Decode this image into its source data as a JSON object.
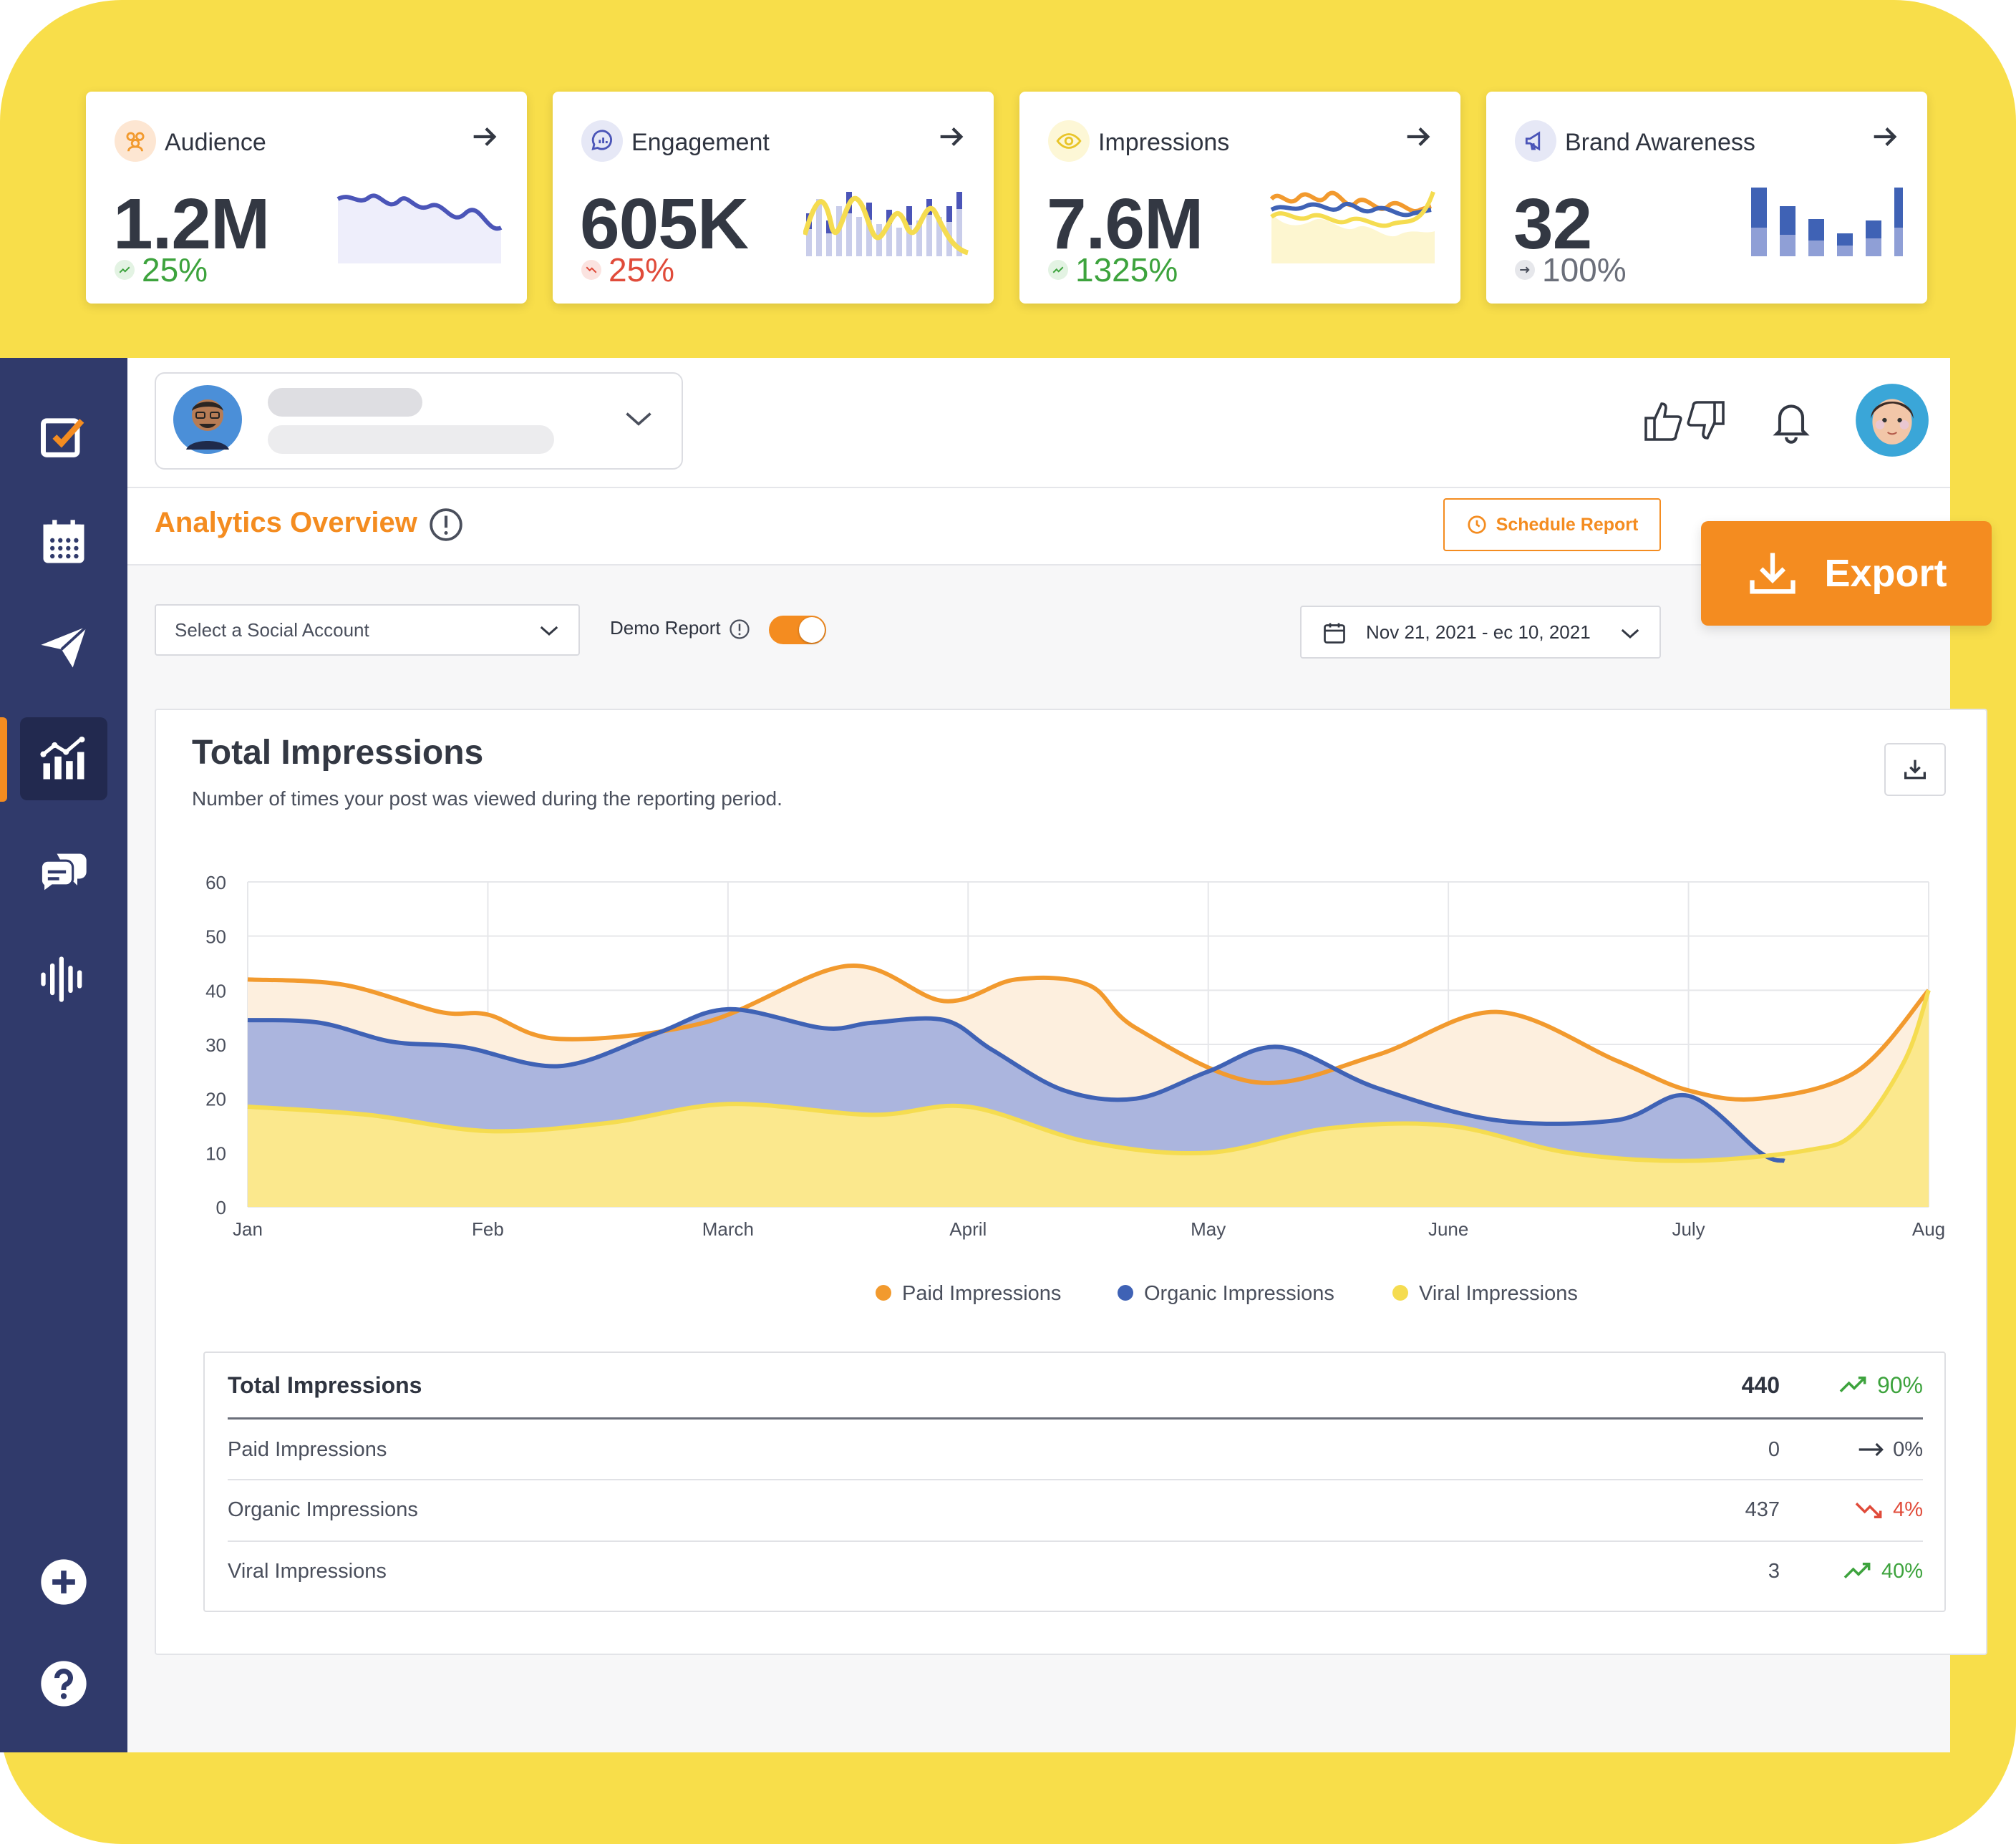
{
  "kpis": [
    {
      "title": "Audience",
      "value": "1.2M",
      "change": "25%",
      "trend": "up",
      "change_color": "#3da33d"
    },
    {
      "title": "Engagement",
      "value": "605K",
      "change": "25%",
      "trend": "down",
      "change_color": "#e04b3a"
    },
    {
      "title": "Impressions",
      "value": "7.6M",
      "change": "1325%",
      "trend": "up",
      "change_color": "#3da33d"
    },
    {
      "title": "Brand Awareness",
      "value": "32",
      "change": "100%",
      "trend": "flat",
      "change_color": "#6b6f7a"
    }
  ],
  "sidebar": {
    "items": [
      {
        "icon": "task-checkbox-icon",
        "active": false
      },
      {
        "icon": "calendar-icon",
        "active": false
      },
      {
        "icon": "paper-plane-icon",
        "active": false
      },
      {
        "icon": "analytics-icon",
        "active": true
      },
      {
        "icon": "chat-bubbles-icon",
        "active": false
      },
      {
        "icon": "sound-wave-icon",
        "active": false
      }
    ],
    "bottom": [
      {
        "icon": "plus-circle-icon"
      },
      {
        "icon": "help-circle-icon"
      }
    ]
  },
  "header": {
    "page_title": "Analytics Overview",
    "schedule_label": "Schedule Report",
    "export_label": "Export"
  },
  "filters": {
    "social_account_placeholder": "Select a Social Account",
    "demo_label": "Demo Report",
    "demo_on": true,
    "date_range": "Nov 21, 2021 - ec 10, 2021"
  },
  "impressions_card": {
    "title": "Total Impressions",
    "subtitle": "Number of times your post was viewed during the reporting period."
  },
  "colors": {
    "paid": "#f29a2e",
    "organic": "#3f62b5",
    "viral": "#f5dc50",
    "accent": "#f48c20",
    "sidebar": "#303a6b",
    "frame": "#f8de4a"
  },
  "chart_data": {
    "type": "area",
    "x": [
      "Jan",
      "Feb",
      "March",
      "April",
      "May",
      "June",
      "July",
      "Aug"
    ],
    "ylim": [
      0,
      60
    ],
    "yticks": [
      0,
      10,
      20,
      30,
      40,
      50,
      60
    ],
    "grid": true,
    "legend": "bottom",
    "series": [
      {
        "name": "Paid Impressions",
        "x": [
          0,
          0.4,
          0.8,
          1.0,
          1.3,
          1.9,
          2.5,
          2.9,
          3.2,
          3.5,
          3.7,
          4.2,
          4.7,
          5.2,
          5.7,
          6.0,
          6.3,
          6.7,
          7.0
        ],
        "values": [
          42,
          41,
          36,
          35.5,
          31,
          34,
          44.5,
          38,
          42,
          41,
          33,
          23,
          28,
          36,
          27,
          21.5,
          20,
          25,
          40
        ]
      },
      {
        "name": "Organic Impressions",
        "x": [
          0,
          0.3,
          0.6,
          0.9,
          1.3,
          1.7,
          2.0,
          2.4,
          2.6,
          2.9,
          3.1,
          3.4,
          3.7,
          4.0,
          4.3,
          4.7,
          5.2,
          5.7,
          6.0,
          6.3,
          6.4
        ],
        "values": [
          34.5,
          34,
          30.5,
          29.5,
          26,
          32,
          36.5,
          33,
          34,
          34.5,
          29,
          21.5,
          20,
          25,
          29.5,
          22,
          16,
          16,
          20.5,
          10,
          8.5
        ]
      },
      {
        "name": "Viral Impressions",
        "x": [
          0,
          0.5,
          1.0,
          1.5,
          2.0,
          2.6,
          3.0,
          3.5,
          4.0,
          4.5,
          5.0,
          5.5,
          6.0,
          6.5,
          6.7,
          6.9,
          7.0
        ],
        "values": [
          18.5,
          17,
          14,
          15.5,
          19,
          17,
          18.5,
          12,
          10,
          14.5,
          15,
          10,
          8.5,
          10.5,
          14,
          27,
          40
        ]
      }
    ]
  },
  "table": {
    "header": {
      "label": "Total Impressions",
      "value": "440",
      "change": "90%",
      "trend": "up"
    },
    "rows": [
      {
        "label": "Paid Impressions",
        "value": "0",
        "change": "0%",
        "trend": "flat"
      },
      {
        "label": "Organic Impressions",
        "value": "437",
        "change": "4%",
        "trend": "down"
      },
      {
        "label": "Viral Impressions",
        "value": "3",
        "change": "40%",
        "trend": "up"
      }
    ]
  }
}
